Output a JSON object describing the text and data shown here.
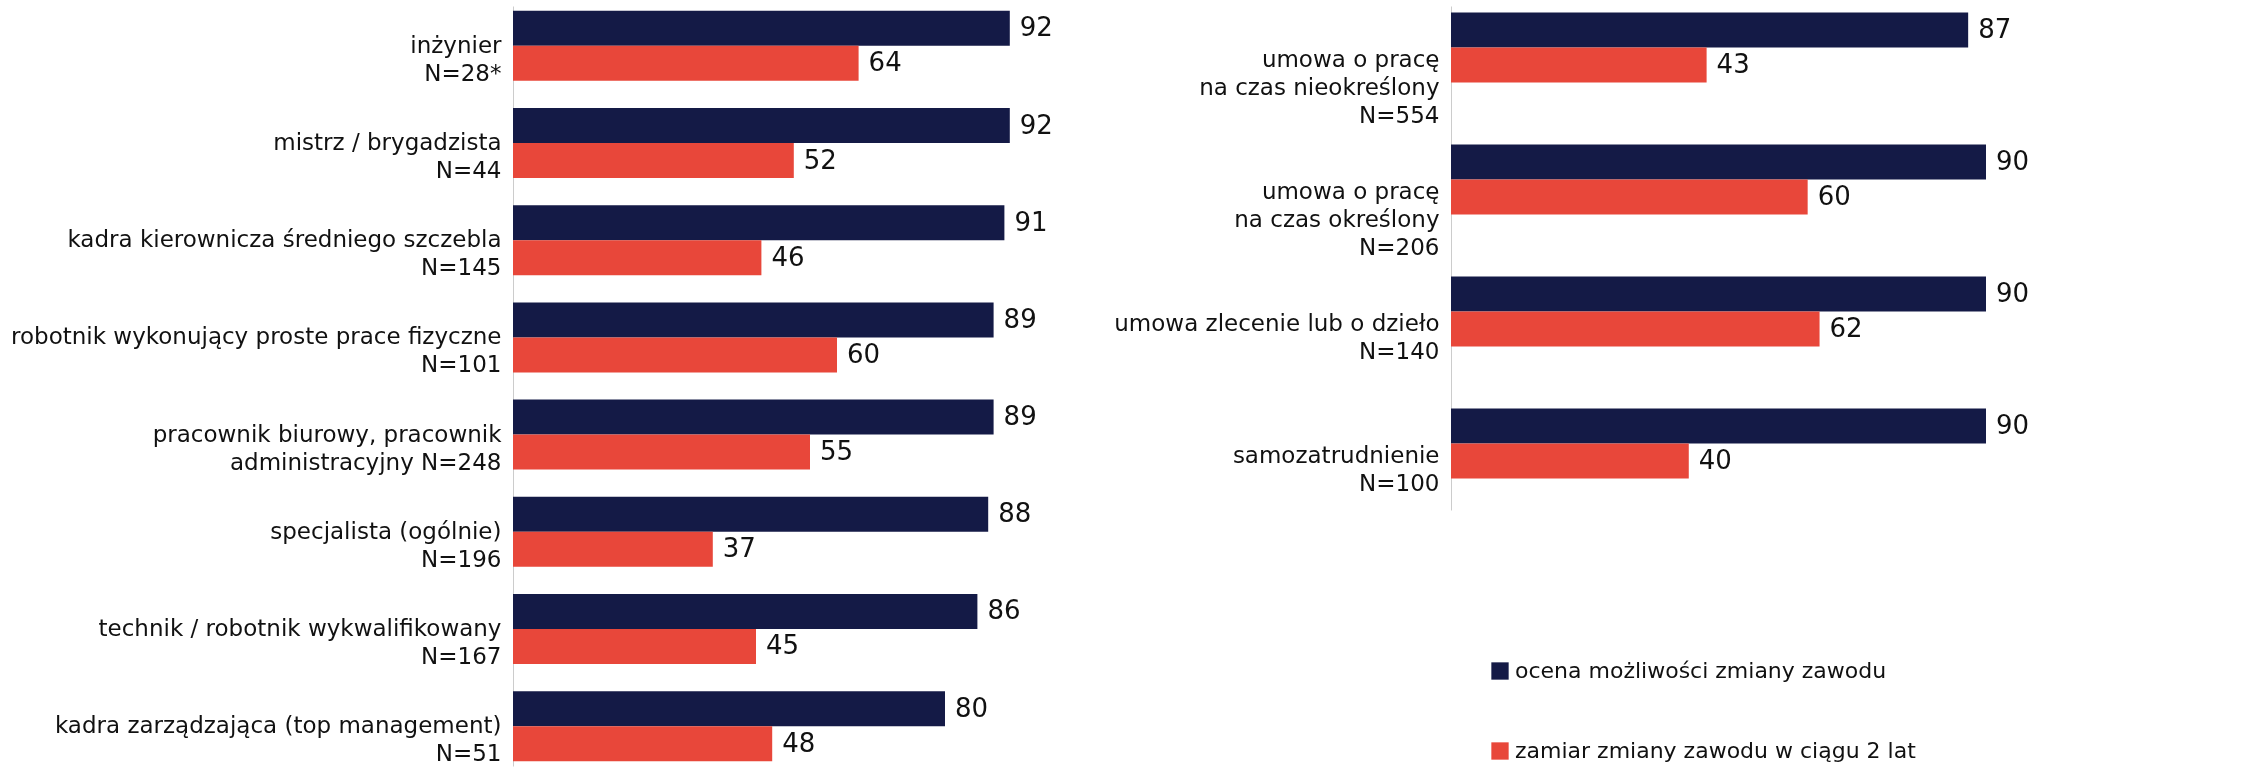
{
  "chart_data": [
    {
      "type": "bar",
      "orientation": "horizontal",
      "data_labels": true,
      "legend": false,
      "categories": [
        "inżynier\nN=28*",
        "mistrz / brygadzista\nN=44",
        "kadra kierownicza średniego szczebla\nN=145",
        "robotnik wykonujący proste prace fizyczne\nN=101",
        "pracownik biurowy, pracownik\nadministracyjny N=248",
        "specjalista (ogólnie)\nN=196",
        "technik / robotnik wykwalifikowany\nN=167",
        "kadra zarządzająca (top management)\nN=51"
      ],
      "series": [
        {
          "color": "#141a46",
          "values": [
            92,
            92,
            91,
            89,
            89,
            88,
            86,
            80
          ]
        },
        {
          "color": "#e8473a",
          "values": [
            64,
            52,
            46,
            60,
            55,
            37,
            45,
            48
          ]
        }
      ]
    },
    {
      "type": "bar",
      "orientation": "horizontal",
      "data_labels": true,
      "legend": "bottom",
      "categories": [
        "umowa o pracę\nna czas nieokreślony\nN=554",
        "umowa o pracę\nna czas określony\nN=206",
        "umowa zlecenie lub o dzieło\nN=140",
        "samozatrudnienie\nN=100"
      ],
      "series": [
        {
          "name": "ocena możliwości zmiany zawodu",
          "color": "#141a46",
          "values": [
            87,
            90,
            90,
            90
          ]
        },
        {
          "name": "zamiar zmiany zawodu w ciągu 2 lat",
          "color": "#e8473a",
          "values": [
            43,
            60,
            62,
            40
          ]
        }
      ]
    }
  ]
}
